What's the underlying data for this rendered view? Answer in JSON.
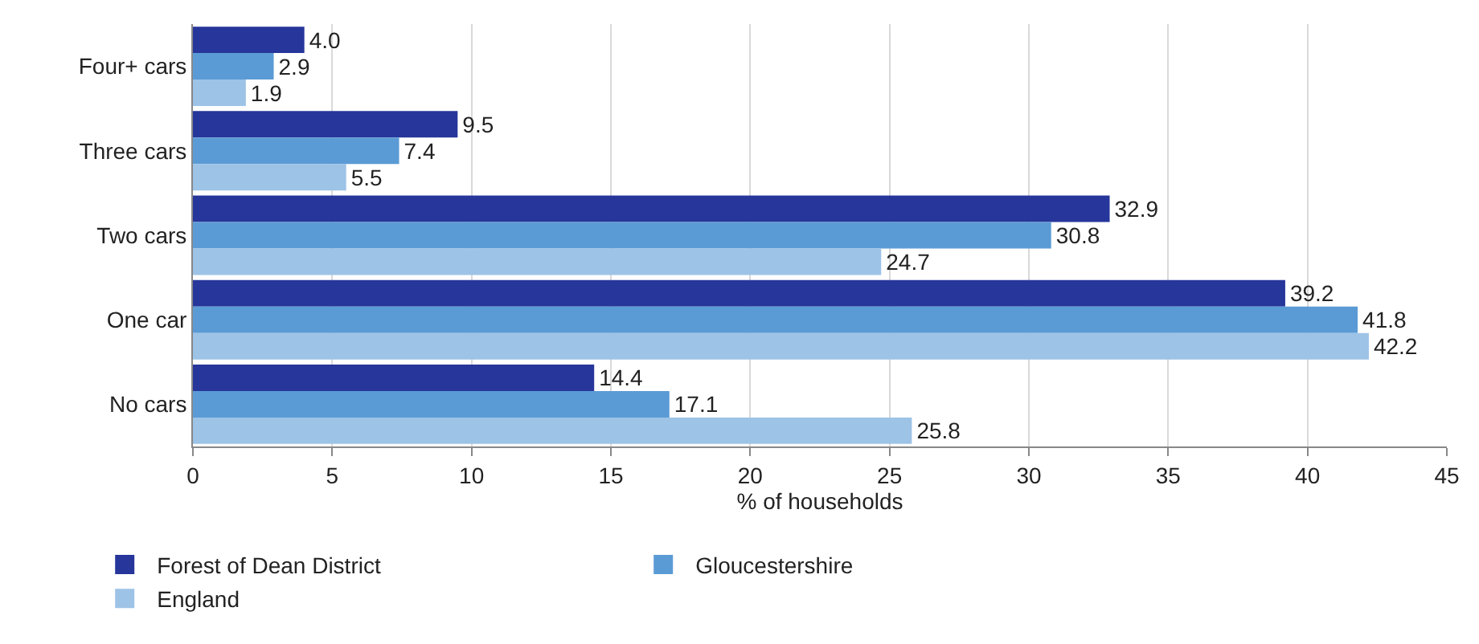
{
  "chart_data": {
    "type": "bar",
    "orientation": "horizontal",
    "xlabel": "% of households",
    "categories": [
      "Four+ cars",
      "Three cars",
      "Two cars",
      "One car",
      "No cars"
    ],
    "series": [
      {
        "name": "Forest of Dean District",
        "color": "#27369a",
        "values": [
          4.0,
          9.5,
          32.9,
          39.2,
          14.4
        ],
        "value_labels": [
          "4.0",
          "9.5",
          "32.9",
          "39.2",
          "14.4"
        ]
      },
      {
        "name": "Gloucestershire",
        "color": "#5b9bd5",
        "values": [
          2.9,
          7.4,
          30.8,
          41.8,
          17.1
        ],
        "value_labels": [
          "2.9",
          "7.4",
          "30.8",
          "41.8",
          "17.1"
        ]
      },
      {
        "name": "England",
        "color": "#9dc3e6",
        "values": [
          1.9,
          5.5,
          24.7,
          42.2,
          25.8
        ],
        "value_labels": [
          "1.9",
          "5.5",
          "24.7",
          "42.2",
          "25.8"
        ]
      }
    ],
    "xlim": [
      0,
      45
    ],
    "xticks": [
      0,
      5,
      10,
      15,
      20,
      25,
      30,
      35,
      40,
      45
    ],
    "grid": "x",
    "legend": "bottom"
  }
}
